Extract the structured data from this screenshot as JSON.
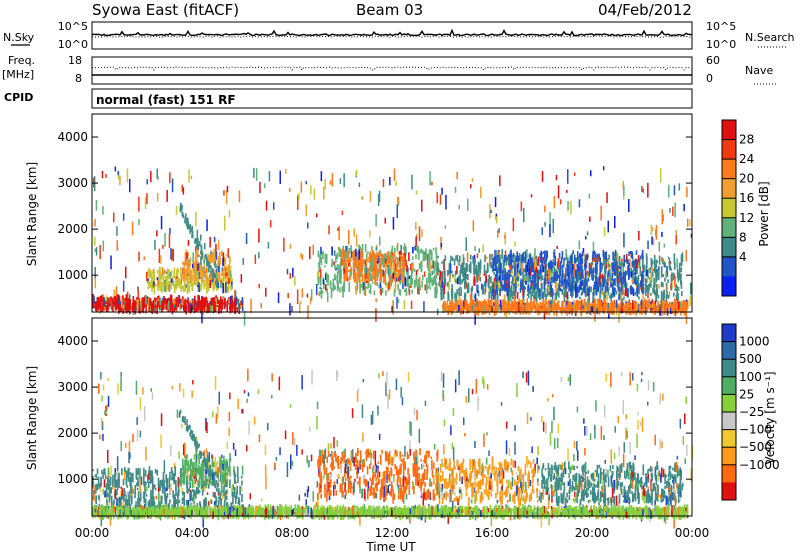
{
  "header": {
    "title": "Syowa East (fitACF)",
    "beam": "Beam 03",
    "date": "04/Feb/2012"
  },
  "top_panels": {
    "nsky_label": "N.Sky",
    "nsky_ticks": [
      "10^5",
      "10^0"
    ],
    "nsearch_label": "N.Search",
    "nsearch_ticks": [
      "10^5",
      "10^0"
    ],
    "freq_label": "Freq.",
    "freq_unit": "[MHz]",
    "freq_ticks": [
      "18",
      "8"
    ],
    "nave_label": "Nave",
    "nave_ticks": [
      "60",
      "0"
    ],
    "cpid_label": "CPID",
    "cpid_text": "normal (fast) 151 RF"
  },
  "chart_data": [
    {
      "type": "heatmap",
      "name": "power",
      "xlabel": "",
      "ylabel": "Slant Range [km]",
      "ylim": [
        200,
        4500
      ],
      "xlim": [
        0,
        24
      ],
      "y_ticks": [
        "1000",
        "2000",
        "3000",
        "4000"
      ],
      "y_tick_values": [
        1000,
        2000,
        3000,
        4000
      ],
      "colorbar_label": "Power [dB]",
      "colorbar_ticks": [
        "4",
        "8",
        "12",
        "16",
        "20",
        "24",
        "28"
      ],
      "colorbar_colors": [
        "#0a1ff0",
        "#2055c8",
        "#3e8a86",
        "#60b27a",
        "#c8c832",
        "#f0a030",
        "#ff7a1a",
        "#f23a10",
        "#e01010"
      ],
      "regions": [
        {
          "t0": 0.0,
          "t1": 6.0,
          "r0": 250,
          "r1": 480,
          "color": "#e01010"
        },
        {
          "t0": 2.2,
          "t1": 5.6,
          "r0": 700,
          "r1": 1100,
          "color": "#c8c832"
        },
        {
          "t0": 3.6,
          "t1": 5.5,
          "r0": 900,
          "r1": 1500,
          "color": "#f0a030"
        },
        {
          "t0": 9.0,
          "t1": 13.8,
          "r0": 600,
          "r1": 1600,
          "color": "#60b27a"
        },
        {
          "t0": 10.0,
          "t1": 12.5,
          "r0": 900,
          "r1": 1500,
          "color": "#ff7a1a"
        },
        {
          "t0": 13.8,
          "t1": 23.6,
          "r0": 500,
          "r1": 1400,
          "color": "#3e8a86"
        },
        {
          "t0": 16.0,
          "t1": 22.0,
          "r0": 600,
          "r1": 1500,
          "color": "#2055c8"
        },
        {
          "t0": 14.0,
          "t1": 23.8,
          "r0": 220,
          "r1": 400,
          "color": "#ff7a1a"
        }
      ]
    },
    {
      "type": "heatmap",
      "name": "velocity",
      "xlabel": "Time UT",
      "ylabel": "Slant Range [km]",
      "ylim": [
        200,
        4500
      ],
      "xlim": [
        0,
        24
      ],
      "x_ticks": [
        "00:00",
        "04:00",
        "08:00",
        "12:00",
        "16:00",
        "20:00",
        "00:00"
      ],
      "x_tick_values": [
        0,
        4,
        8,
        12,
        16,
        20,
        24
      ],
      "y_ticks": [
        "1000",
        "2000",
        "3000",
        "4000"
      ],
      "y_tick_values": [
        1000,
        2000,
        3000,
        4000
      ],
      "colorbar_label": "Velocity [m s⁻¹]",
      "colorbar_ticks": [
        "1000",
        "500",
        "100",
        "25",
        "−25",
        "−100",
        "−500",
        "−1000"
      ],
      "colorbar_colors": [
        "#1e3cc8",
        "#2e6aa8",
        "#3e8a86",
        "#4fae62",
        "#86d03c",
        "#c8c8c8",
        "#f0c832",
        "#ff9a1a",
        "#ff6a10",
        "#e01010"
      ],
      "regions": [
        {
          "t0": 0.0,
          "t1": 6.0,
          "r0": 300,
          "r1": 1200,
          "color": "#3e8a86"
        },
        {
          "t0": 3.5,
          "t1": 5.5,
          "r0": 900,
          "r1": 1500,
          "color": "#4fae62"
        },
        {
          "t0": 9.0,
          "t1": 13.8,
          "r0": 600,
          "r1": 1600,
          "color": "#ff6a10"
        },
        {
          "t0": 13.8,
          "t1": 17.8,
          "r0": 500,
          "r1": 1400,
          "color": "#ff9a1a"
        },
        {
          "t0": 17.8,
          "t1": 23.6,
          "r0": 500,
          "r1": 1300,
          "color": "#3e8a86"
        },
        {
          "t0": 0.0,
          "t1": 23.8,
          "r0": 220,
          "r1": 350,
          "color": "#86d03c"
        }
      ]
    }
  ]
}
